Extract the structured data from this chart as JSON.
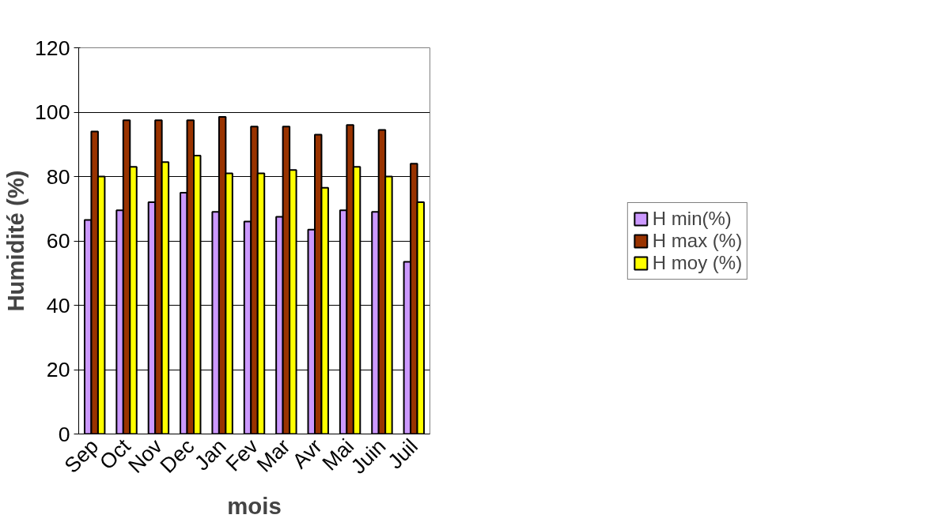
{
  "chart_data": {
    "type": "bar",
    "xlabel": "mois",
    "ylabel": "Humidité (%)",
    "categories": [
      "Sep",
      "Oct",
      "Nov",
      "Dec",
      "Jan",
      "Fev",
      "Mar",
      "Avr",
      "Mai",
      "Juin",
      "Juil"
    ],
    "series": [
      {
        "name": "H min(%)",
        "color": "#cc99ff",
        "values": [
          66.5,
          69.5,
          72,
          75,
          69,
          66,
          67.5,
          63.5,
          69.5,
          69,
          53.5
        ]
      },
      {
        "name": "H max (%)",
        "color": "#993300",
        "values": [
          94,
          97.5,
          97.5,
          97.5,
          98.5,
          95.5,
          95.5,
          93,
          96,
          94.5,
          84
        ]
      },
      {
        "name": "H moy (%)",
        "color": "#ffff00",
        "values": [
          80,
          83,
          84.5,
          86.5,
          81,
          81,
          82,
          76.5,
          83,
          80,
          72
        ]
      }
    ],
    "ylim": [
      0,
      120
    ],
    "yticks": [
      0,
      20,
      40,
      60,
      80,
      100,
      120
    ],
    "grid": "y",
    "legend": "right"
  }
}
